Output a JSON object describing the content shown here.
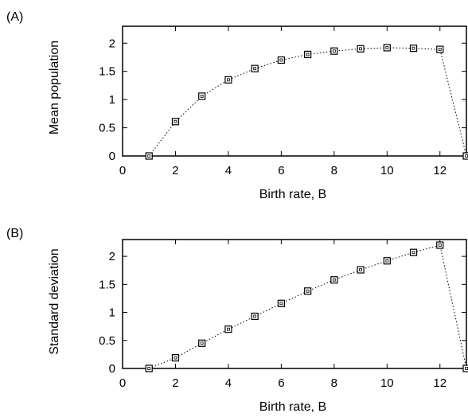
{
  "chart_data": [
    {
      "type": "line",
      "panel_label": "(A)",
      "xlabel": "Birth rate, B",
      "ylabel": "Mean population",
      "xlim": [
        0,
        13
      ],
      "ylim": [
        0,
        2.3
      ],
      "xticks": [
        0,
        2,
        4,
        6,
        8,
        10,
        12
      ],
      "yticks": [
        0,
        0.5,
        1,
        1.5,
        2
      ],
      "ytick_labels": [
        "0",
        "0.5",
        "1",
        "1.5",
        "2"
      ],
      "grid": false,
      "marker": "square",
      "line_style": "dotted",
      "x": [
        1,
        2,
        3,
        4,
        5,
        6,
        7,
        8,
        9,
        10,
        11,
        12,
        13
      ],
      "y": [
        0,
        0.61,
        1.06,
        1.35,
        1.55,
        1.7,
        1.8,
        1.86,
        1.9,
        1.92,
        1.91,
        1.89,
        0
      ]
    },
    {
      "type": "line",
      "panel_label": "(B)",
      "xlabel": "Birth rate, B",
      "ylabel": "Standard deviation",
      "xlim": [
        0,
        13
      ],
      "ylim": [
        0,
        2.3
      ],
      "xticks": [
        0,
        2,
        4,
        6,
        8,
        10,
        12
      ],
      "yticks": [
        0,
        0.5,
        1,
        1.5,
        2
      ],
      "ytick_labels": [
        "0",
        "0.5",
        "1",
        "1.5",
        "2"
      ],
      "grid": false,
      "marker": "square",
      "line_style": "dotted",
      "x": [
        1,
        2,
        3,
        4,
        5,
        6,
        7,
        8,
        9,
        10,
        11,
        12,
        13
      ],
      "y": [
        0,
        0.19,
        0.45,
        0.7,
        0.93,
        1.16,
        1.38,
        1.58,
        1.76,
        1.92,
        2.07,
        2.2,
        0
      ]
    }
  ]
}
